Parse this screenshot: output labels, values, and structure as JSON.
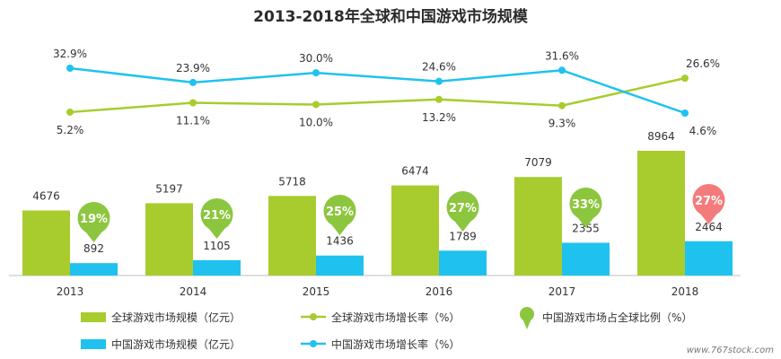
{
  "chart_data": {
    "type": "bar",
    "title": "2013-2018年全球和中国游戏市场规模",
    "categories": [
      "2013",
      "2014",
      "2015",
      "2016",
      "2017",
      "2018"
    ],
    "series": [
      {
        "name": "全球游戏市场规模（亿元）",
        "kind": "bar",
        "values": [
          4676,
          5197,
          5718,
          6474,
          7079,
          8964
        ],
        "color": "#a8cc2e"
      },
      {
        "name": "中国游戏市场规模（亿元）",
        "kind": "bar",
        "values": [
          892,
          1105,
          1436,
          1789,
          2355,
          2464
        ],
        "color": "#1fc2ef"
      },
      {
        "name": "全球游戏市场增长率（%）",
        "kind": "line",
        "values": [
          5.2,
          11.1,
          10.0,
          13.2,
          9.3,
          26.6
        ],
        "labels": [
          "5.2%",
          "11.1%",
          "10.0%",
          "13.2%",
          "9.3%",
          "26.6%"
        ],
        "color": "#a8cc2e"
      },
      {
        "name": "中国游戏市场增长率（%）",
        "kind": "line",
        "values": [
          32.9,
          23.9,
          30.0,
          24.6,
          31.6,
          4.6
        ],
        "labels": [
          "32.9%",
          "23.9%",
          "30.0%",
          "24.6%",
          "31.6%",
          "4.6%"
        ],
        "color": "#1fc2ef"
      },
      {
        "name": "中国游戏市场占全球比例（%）",
        "kind": "bubble",
        "values": [
          19,
          21,
          25,
          27,
          33,
          27
        ],
        "labels": [
          "19%",
          "21%",
          "25%",
          "27%",
          "33%",
          "27%"
        ],
        "color": "#8cc63e",
        "highlight_color": "#f47b7b",
        "highlight_index": 5
      }
    ],
    "grid": false,
    "legend_position": "bottom"
  },
  "watermark": "www.767stock.com"
}
